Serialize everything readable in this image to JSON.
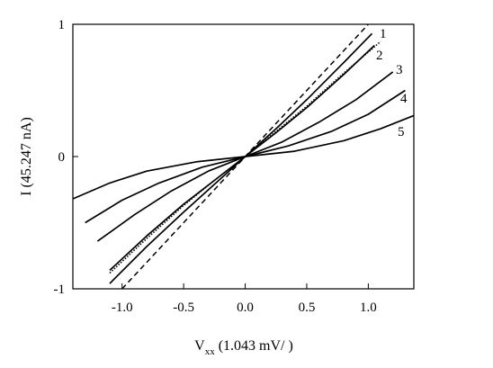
{
  "chart_data": {
    "type": "line",
    "title": "",
    "xlabel_main": "V",
    "xlabel_sub": "xx",
    "xlabel_unit": " (1.043 mV/ )",
    "ylabel": "I (45.247 nA)",
    "xlim": [
      -1.4,
      1.37
    ],
    "ylim": [
      -1,
      1
    ],
    "xticks": [
      -1.0,
      -0.5,
      0.0,
      0.5,
      1.0
    ],
    "xtick_labels": [
      "-1.0",
      "-0.5",
      "0.0",
      "0.5",
      "1.0"
    ],
    "yticks": [
      -1,
      0,
      1
    ],
    "ytick_labels": [
      "-1",
      "0",
      "1"
    ],
    "grid": false,
    "legend": "none",
    "series": [
      {
        "name": "1",
        "style": "solid",
        "x": [
          -1.1,
          -0.8,
          -0.5,
          -0.25,
          0,
          0.25,
          0.5,
          0.8,
          1.03
        ],
        "y": [
          -0.96,
          -0.68,
          -0.42,
          -0.21,
          0,
          0.21,
          0.43,
          0.71,
          0.93
        ]
      },
      {
        "name": "",
        "style": "dashed",
        "x": [
          -1.0,
          -0.5,
          0,
          0.5,
          1.0
        ],
        "y": [
          -1.0,
          -0.5,
          0,
          0.5,
          1.0
        ]
      },
      {
        "name": "2",
        "style": "solid",
        "x": [
          -1.1,
          -0.8,
          -0.5,
          -0.25,
          0,
          0.25,
          0.5,
          0.8,
          1.05
        ],
        "y": [
          -0.86,
          -0.6,
          -0.36,
          -0.18,
          0,
          0.18,
          0.37,
          0.62,
          0.84
        ]
      },
      {
        "name": "",
        "style": "dotted",
        "x": [
          -1.1,
          -0.8,
          -0.5,
          -0.25,
          0,
          0.25,
          0.5,
          0.8,
          1.1
        ],
        "y": [
          -0.88,
          -0.62,
          -0.37,
          -0.18,
          0,
          0.19,
          0.38,
          0.63,
          0.87
        ]
      },
      {
        "name": "3",
        "style": "solid",
        "x": [
          -1.2,
          -0.9,
          -0.6,
          -0.3,
          0,
          0.3,
          0.6,
          0.9,
          1.2
        ],
        "y": [
          -0.64,
          -0.44,
          -0.26,
          -0.11,
          0,
          0.11,
          0.26,
          0.43,
          0.64
        ]
      },
      {
        "name": "4",
        "style": "solid",
        "x": [
          -1.3,
          -1.0,
          -0.7,
          -0.35,
          0,
          0.35,
          0.7,
          1.0,
          1.3
        ],
        "y": [
          -0.5,
          -0.33,
          -0.2,
          -0.08,
          0,
          0.08,
          0.19,
          0.32,
          0.5
        ]
      },
      {
        "name": "5",
        "style": "solid",
        "x": [
          -1.4,
          -1.1,
          -0.8,
          -0.4,
          0,
          0.4,
          0.8,
          1.1,
          1.37
        ],
        "y": [
          -0.32,
          -0.2,
          -0.11,
          -0.04,
          0,
          0.04,
          0.12,
          0.21,
          0.31
        ]
      }
    ]
  }
}
